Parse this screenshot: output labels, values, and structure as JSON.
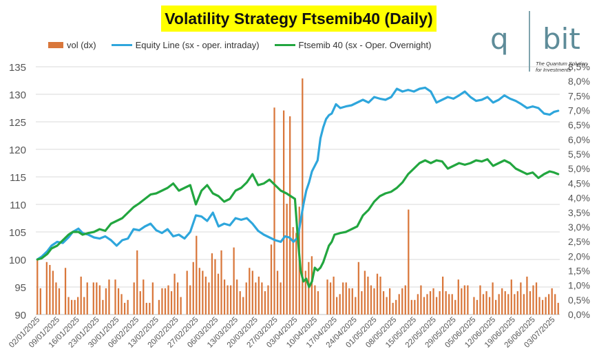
{
  "title": "Volatility Strategy Ftsemib40 (Daily)",
  "logo": {
    "left": "q",
    "right": "bit",
    "tagline_1": "The Quantum Solution",
    "tagline_2": "for Investments"
  },
  "legend": [
    {
      "label": "vol (dx)",
      "kind": "bar",
      "color": "#d9773b"
    },
    {
      "label": "Equity Line (sx - oper. intraday)",
      "kind": "line",
      "color": "#2ea6dc"
    },
    {
      "label": "Ftsemib 40 (sx - Oper. Overnight)",
      "kind": "line",
      "color": "#22a63f"
    }
  ],
  "chart_data": {
    "type": "line",
    "title": "Volatility Strategy Ftsemib40 (Daily)",
    "left_axis": {
      "range": [
        90,
        135
      ],
      "ticks": [
        "90",
        "95",
        "100",
        "105",
        "110",
        "115",
        "120",
        "125",
        "130",
        "135"
      ]
    },
    "right_axis": {
      "range": [
        0,
        8.5
      ],
      "ticks": [
        "0,0%",
        "0,5%",
        "1,0%",
        "1,5%",
        "2,0%",
        "2,5%",
        "3,0%",
        "3,5%",
        "4,0%",
        "4,5%",
        "5,0%",
        "5,5%",
        "6,0%",
        "6,5%",
        "7,0%",
        "7,5%",
        "8,0%",
        "8,5%"
      ]
    },
    "x_tick_labels": [
      "02/01/2025",
      "09/01/2025",
      "16/01/2025",
      "23/01/2025",
      "30/01/2025",
      "06/02/2025",
      "13/02/2025",
      "20/02/2025",
      "27/02/2025",
      "06/03/2025",
      "13/03/2025",
      "20/03/2025",
      "27/03/2025",
      "03/04/2025",
      "10/04/2025",
      "17/04/2025",
      "24/04/2025",
      "01/05/2025",
      "08/05/2025",
      "15/05/2025",
      "22/05/2025",
      "29/05/2025",
      "05/06/2025",
      "12/06/2025",
      "19/06/2025",
      "26/06/2025",
      "03/07/2025"
    ],
    "grid": true,
    "legend_position": "top",
    "series": [
      {
        "name": "vol (dx)",
        "type": "bar",
        "axis": "right",
        "color": "#d9773b",
        "values": [
          1.9,
          0.9,
          0,
          1.8,
          1.7,
          1.5,
          1.1,
          0.9,
          0,
          1.6,
          0.6,
          0.5,
          0.5,
          0.6,
          1.3,
          0.6,
          1.1,
          0,
          1.1,
          1.1,
          1.0,
          0.5,
          0.9,
          1.2,
          0,
          1.2,
          0.9,
          0.7,
          0.4,
          0.5,
          0,
          1.1,
          2.2,
          0.8,
          1.2,
          0.4,
          0.4,
          1.1,
          0,
          0.5,
          0.9,
          0.9,
          1.0,
          0.8,
          1.4,
          1.1,
          0.6,
          0,
          1.5,
          1.0,
          1.8,
          2.7,
          1.6,
          1.5,
          1.3,
          1.1,
          2.1,
          1.9,
          1.4,
          2.2,
          1.2,
          1.0,
          1.0,
          2.3,
          1.2,
          0.8,
          0.6,
          1.1,
          1.6,
          1.5,
          1.1,
          1.3,
          1.1,
          0.8,
          1.0,
          2.4,
          7.1,
          1.5,
          1.1,
          7.0,
          3.8,
          6.8,
          3.0,
          2.8,
          3.7,
          8.1,
          1.5,
          1.8,
          2.0,
          1.0,
          0.8,
          0,
          0,
          1.2,
          1.1,
          1.3,
          0.6,
          0.7,
          1.1,
          1.1,
          0.9,
          0.9,
          0.6,
          1.8,
          0.8,
          1.5,
          1.3,
          1.0,
          0.9,
          1.4,
          1.3,
          0.8,
          0.6,
          0.9,
          0.4,
          0.5,
          0.7,
          0.9,
          1.0,
          3.6,
          0.5,
          0.5,
          0.7,
          1.0,
          0.6,
          0.7,
          0.8,
          0.9,
          0.6,
          0.8,
          1.3,
          0.8,
          0.7,
          0.7,
          0.5,
          1.2,
          0.9,
          1.0,
          1.0,
          0,
          0.6,
          0.5,
          1.0,
          0.7,
          0.8,
          0.6,
          1.1,
          0.5,
          0.7,
          0.9,
          0.8,
          0.7,
          1.2,
          0.7,
          0.8,
          1.1,
          0.7,
          1.3,
          0.8,
          1.0,
          1.1,
          0.6,
          0.5,
          0.6,
          0.7,
          0.9,
          0.7,
          0.4
        ]
      },
      {
        "name": "Equity Line (sx - oper. intraday)",
        "type": "line",
        "axis": "left",
        "color": "#2ea6dc",
        "points": [
          [
            0,
            100
          ],
          [
            3,
            100.5
          ],
          [
            7,
            101.5
          ],
          [
            10,
            102.5
          ],
          [
            14,
            103.2
          ],
          [
            18,
            103
          ],
          [
            22,
            104
          ],
          [
            25,
            105
          ],
          [
            29,
            105.6
          ],
          [
            32,
            104.8
          ],
          [
            36,
            104.5
          ],
          [
            40,
            104
          ],
          [
            44,
            103.8
          ],
          [
            48,
            104.2
          ],
          [
            52,
            103.5
          ],
          [
            56,
            102.5
          ],
          [
            60,
            103.5
          ],
          [
            64,
            103.8
          ],
          [
            68,
            105.5
          ],
          [
            72,
            105.3
          ],
          [
            76,
            106
          ],
          [
            80,
            106.5
          ],
          [
            84,
            105.3
          ],
          [
            88,
            104.8
          ],
          [
            92,
            105.5
          ],
          [
            96,
            104.2
          ],
          [
            100,
            104.5
          ],
          [
            104,
            103.8
          ],
          [
            108,
            105
          ],
          [
            112,
            108
          ],
          [
            116,
            107.8
          ],
          [
            120,
            107
          ],
          [
            124,
            108.5
          ],
          [
            128,
            106
          ],
          [
            132,
            106.5
          ],
          [
            136,
            106.2
          ],
          [
            140,
            107.5
          ],
          [
            144,
            107.2
          ],
          [
            148,
            107.5
          ],
          [
            152,
            106.5
          ],
          [
            156,
            105.2
          ],
          [
            160,
            104.5
          ],
          [
            164,
            104
          ],
          [
            168,
            103.5
          ],
          [
            172,
            103.2
          ],
          [
            175,
            104.2
          ],
          [
            178,
            104
          ],
          [
            181,
            103.2
          ],
          [
            184,
            104
          ],
          [
            186,
            107
          ],
          [
            188,
            110
          ],
          [
            190,
            112.5
          ],
          [
            192,
            114
          ],
          [
            194,
            116
          ],
          [
            196,
            117
          ],
          [
            198,
            118
          ],
          [
            200,
            122
          ],
          [
            202,
            124
          ],
          [
            204,
            125.5
          ],
          [
            206,
            126.2
          ],
          [
            208,
            126.5
          ],
          [
            211,
            128.2
          ],
          [
            214,
            127.5
          ],
          [
            218,
            127.8
          ],
          [
            222,
            128
          ],
          [
            226,
            128.5
          ],
          [
            230,
            129
          ],
          [
            234,
            128.5
          ],
          [
            238,
            129.5
          ],
          [
            242,
            129.2
          ],
          [
            246,
            129
          ],
          [
            250,
            129.5
          ],
          [
            254,
            131
          ],
          [
            258,
            130.5
          ],
          [
            262,
            130.8
          ],
          [
            266,
            130.5
          ],
          [
            270,
            131
          ],
          [
            274,
            131.2
          ],
          [
            278,
            130.5
          ],
          [
            282,
            128.5
          ],
          [
            286,
            129
          ],
          [
            290,
            129.5
          ],
          [
            294,
            129.2
          ],
          [
            298,
            129.8
          ],
          [
            302,
            130.5
          ],
          [
            306,
            129.5
          ],
          [
            310,
            128.8
          ],
          [
            314,
            129
          ],
          [
            318,
            129.5
          ],
          [
            322,
            128.5
          ],
          [
            326,
            129
          ],
          [
            330,
            129.8
          ],
          [
            334,
            129.2
          ],
          [
            338,
            128.8
          ],
          [
            342,
            128.2
          ],
          [
            346,
            127.5
          ],
          [
            350,
            127.8
          ],
          [
            354,
            127.5
          ],
          [
            358,
            126.5
          ],
          [
            362,
            126.3
          ],
          [
            365,
            126.8
          ],
          [
            368,
            127
          ]
        ]
      },
      {
        "name": "Ftsemib 40 (sx - Oper. Overnight)",
        "type": "line",
        "axis": "left",
        "color": "#22a63f",
        "points": [
          [
            0,
            100
          ],
          [
            3,
            100.2
          ],
          [
            7,
            101
          ],
          [
            10,
            102
          ],
          [
            14,
            102.5
          ],
          [
            18,
            103.5
          ],
          [
            22,
            104.5
          ],
          [
            25,
            105
          ],
          [
            29,
            105
          ],
          [
            32,
            104.5
          ],
          [
            36,
            104.8
          ],
          [
            40,
            105
          ],
          [
            44,
            105.5
          ],
          [
            48,
            105.2
          ],
          [
            52,
            106.5
          ],
          [
            56,
            107
          ],
          [
            60,
            107.5
          ],
          [
            64,
            108.5
          ],
          [
            68,
            109.5
          ],
          [
            72,
            110.2
          ],
          [
            76,
            111
          ],
          [
            80,
            111.8
          ],
          [
            84,
            112
          ],
          [
            88,
            112.5
          ],
          [
            92,
            113
          ],
          [
            96,
            113.8
          ],
          [
            100,
            112.5
          ],
          [
            104,
            113
          ],
          [
            108,
            113.5
          ],
          [
            112,
            110
          ],
          [
            116,
            112.5
          ],
          [
            120,
            113.5
          ],
          [
            124,
            112
          ],
          [
            128,
            111.5
          ],
          [
            132,
            110.5
          ],
          [
            136,
            111
          ],
          [
            140,
            112.5
          ],
          [
            144,
            113
          ],
          [
            148,
            114
          ],
          [
            152,
            115.5
          ],
          [
            156,
            113.5
          ],
          [
            160,
            113.8
          ],
          [
            164,
            114.5
          ],
          [
            168,
            113.5
          ],
          [
            172,
            112.5
          ],
          [
            176,
            112
          ],
          [
            179,
            111.5
          ],
          [
            182,
            111
          ],
          [
            184,
            104
          ],
          [
            186,
            98
          ],
          [
            188,
            96
          ],
          [
            190,
            96.5
          ],
          [
            192,
            95
          ],
          [
            194,
            96
          ],
          [
            196,
            98.5
          ],
          [
            198,
            98
          ],
          [
            200,
            98.5
          ],
          [
            202,
            99.5
          ],
          [
            204,
            101
          ],
          [
            206,
            102.5
          ],
          [
            208,
            103.2
          ],
          [
            210,
            104.5
          ],
          [
            214,
            104.8
          ],
          [
            218,
            105
          ],
          [
            222,
            105.5
          ],
          [
            226,
            106
          ],
          [
            230,
            108
          ],
          [
            234,
            109
          ],
          [
            238,
            110.5
          ],
          [
            242,
            111.5
          ],
          [
            246,
            112
          ],
          [
            250,
            112.3
          ],
          [
            254,
            113
          ],
          [
            258,
            114
          ],
          [
            262,
            115.5
          ],
          [
            266,
            116.5
          ],
          [
            270,
            117.5
          ],
          [
            274,
            118
          ],
          [
            278,
            117.5
          ],
          [
            282,
            118
          ],
          [
            286,
            117.8
          ],
          [
            290,
            116.5
          ],
          [
            294,
            117
          ],
          [
            298,
            117.5
          ],
          [
            302,
            117.2
          ],
          [
            306,
            117.5
          ],
          [
            310,
            118
          ],
          [
            314,
            117.8
          ],
          [
            318,
            118.2
          ],
          [
            322,
            117
          ],
          [
            326,
            117.5
          ],
          [
            330,
            118
          ],
          [
            334,
            117.5
          ],
          [
            338,
            116.5
          ],
          [
            342,
            116
          ],
          [
            346,
            115.5
          ],
          [
            350,
            115.8
          ],
          [
            354,
            114.8
          ],
          [
            358,
            115.5
          ],
          [
            362,
            116
          ],
          [
            365,
            115.8
          ],
          [
            368,
            115.5
          ]
        ]
      }
    ]
  },
  "colors": {
    "grid": "#d9d9d9",
    "axis_text": "#555555",
    "axis_line": "#bfbfbf"
  }
}
